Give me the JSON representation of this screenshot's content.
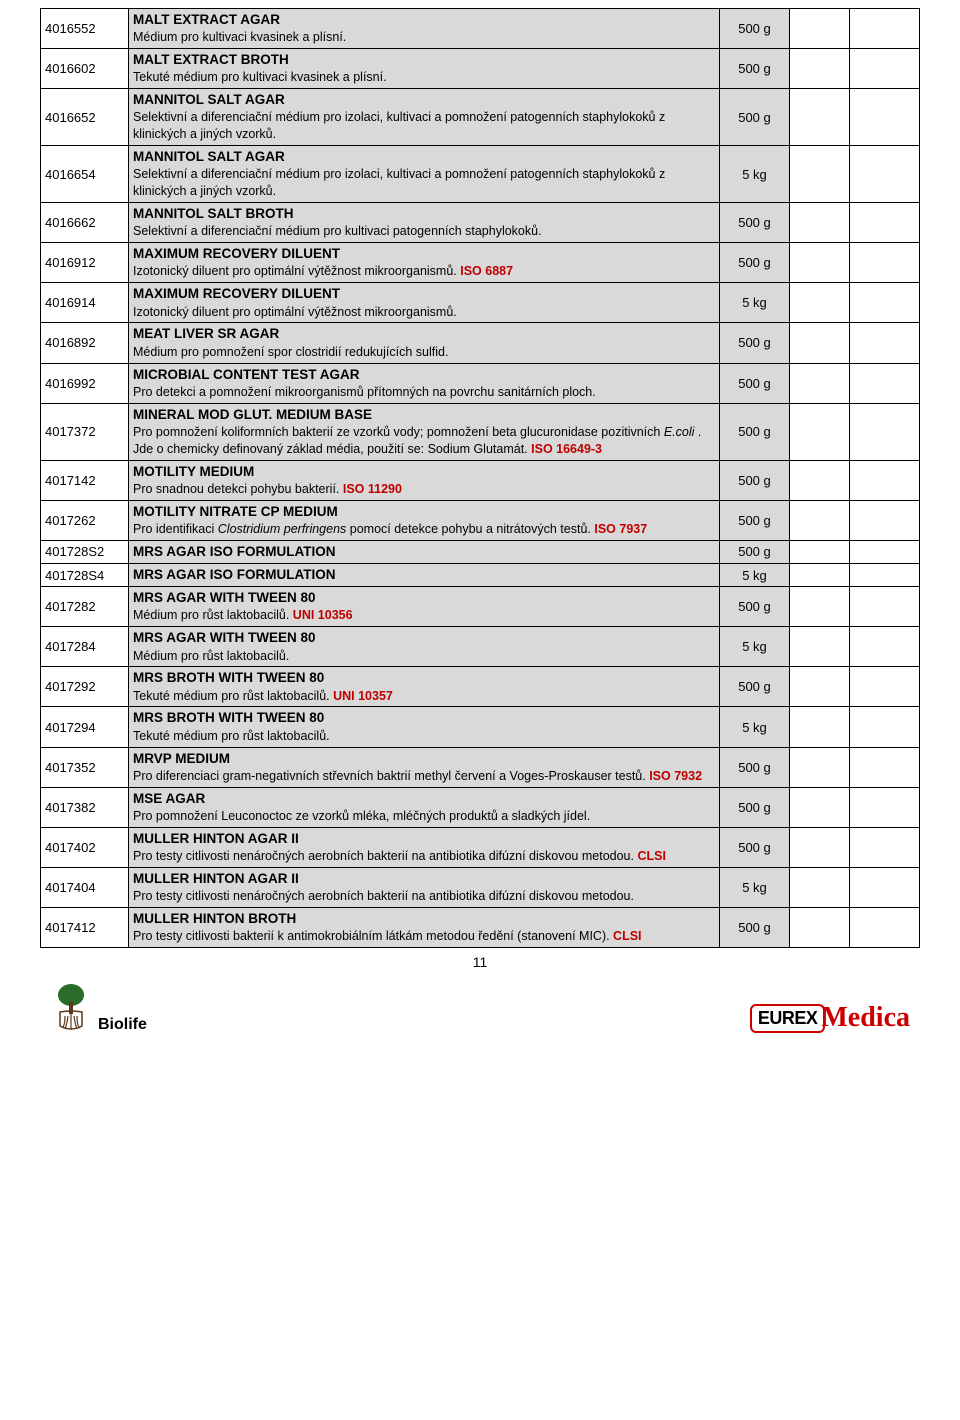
{
  "page_number": "11",
  "footer": {
    "biolife": "Biolife",
    "eurex": "EUREX",
    "medica": "Medica"
  },
  "rows": [
    {
      "code": "4016552",
      "title": "MALT EXTRACT AGAR",
      "desc": "Médium pro kultivaci kvasinek a plísní.",
      "qty": "500 g"
    },
    {
      "code": "4016602",
      "title": "MALT EXTRACT BROTH",
      "desc": "Tekuté médium pro kultivaci kvasinek a plísní.",
      "qty": "500 g"
    },
    {
      "code": "4016652",
      "title": "MANNITOL SALT AGAR",
      "desc": "Selektivní a diferenciační médium pro izolaci, kultivaci a pomnožení patogenních staphylokoků z klinických a jiných vzorků.",
      "qty": "500 g"
    },
    {
      "code": "4016654",
      "title": "MANNITOL SALT AGAR",
      "desc": "Selektivní a diferenciační médium pro izolaci, kultivaci a pomnožení patogenních staphylokoků z klinických a jiných vzorků.",
      "qty": "5 kg"
    },
    {
      "code": "4016662",
      "title": "MANNITOL SALT BROTH",
      "desc": "Selektivní a diferenciační médium pro kultivaci patogenních staphylokoků.",
      "qty": "500 g"
    },
    {
      "code": "4016912",
      "title": "MAXIMUM RECOVERY DILUENT",
      "desc": "Izotonický diluent pro optimální výtěžnost mikroorganismů.",
      "iso": " ISO 6887",
      "qty": "500 g"
    },
    {
      "code": "4016914",
      "title": "MAXIMUM RECOVERY DILUENT",
      "desc": "Izotonický diluent pro optimální výtěžnost mikroorganismů.",
      "qty": "5 kg"
    },
    {
      "code": "4016892",
      "title": "MEAT LIVER SR AGAR",
      "desc": "Médium pro pomnožení spor clostridií redukujících sulfid.",
      "qty": "500 g"
    },
    {
      "code": "4016992",
      "title": "MICROBIAL CONTENT TEST AGAR",
      "desc": "Pro detekci a pomnožení mikroorganismů přítomných na povrchu sanitárních ploch.",
      "qty": "500 g"
    },
    {
      "code": "4017372",
      "title": "MINERAL MOD GLUT. MEDIUM BASE",
      "desc_html": "Pro pomnožení koliformních bakterií ze vzorků vody; pomnožení beta glucuronidase pozitivních <span class='it'>E.coli</span> . Jde o chemicky definovaný základ média, použití se: Sodium Glutamát.",
      "iso": "  ISO 16649-3",
      "qty": "500 g"
    },
    {
      "code": "4017142",
      "title": "MOTILITY MEDIUM",
      "desc": "Pro snadnou detekci pohybu bakterií.",
      "iso": "  ISO 11290",
      "qty": "500 g"
    },
    {
      "code": "4017262",
      "title": "MOTILITY NITRATE CP MEDIUM",
      "desc_html": "Pro identifikaci <span class='it'>Clostridium perfringens</span> pomocí detekce pohybu a nitrátových testů.",
      "iso": "   ISO 7937",
      "qty": "500 g"
    },
    {
      "code": "401728S2",
      "title": "MRS AGAR ISO FORMULATION",
      "title_only": true,
      "qty": "500 g"
    },
    {
      "code": "401728S4",
      "title": "MRS AGAR ISO FORMULATION",
      "title_only": true,
      "qty": "5 kg"
    },
    {
      "code": "4017282",
      "title": "MRS AGAR WITH TWEEN 80",
      "desc": "Médium pro růst laktobacilů.",
      "iso": "  UNI 10356",
      "qty": "500 g"
    },
    {
      "code": "4017284",
      "title": "MRS AGAR WITH TWEEN 80",
      "desc": "Médium pro růst laktobacilů.",
      "qty": "5 kg"
    },
    {
      "code": "4017292",
      "title": "MRS BROTH WITH TWEEN 80",
      "desc": "Tekuté médium pro růst laktobacilů.",
      "iso": "  UNI 10357",
      "qty": "500 g"
    },
    {
      "code": "4017294",
      "title": "MRS BROTH WITH TWEEN 80",
      "desc": "Tekuté médium pro růst laktobacilů.",
      "qty": "5 kg"
    },
    {
      "code": "4017352",
      "title": "MRVP MEDIUM",
      "desc": "Pro diferenciaci gram-negativních střevních baktrií methyl červení a Voges-Proskauser testů.",
      "iso": "  ISO 7932",
      "qty": "500 g"
    },
    {
      "code": "4017382",
      "title": "MSE AGAR",
      "desc": "Pro pomnožení Leuconoctoc ze vzorků mléka, mléčných produktů a sladkých jídel.",
      "qty": "500 g"
    },
    {
      "code": "4017402",
      "title": "MULLER HINTON AGAR II",
      "desc": "Pro testy citlivosti nenáročných aerobních bakterií na antibiotika difúzní diskovou metodou.",
      "iso": " CLSI",
      "qty": "500 g"
    },
    {
      "code": "4017404",
      "title": "MULLER HINTON AGAR II",
      "desc": "Pro testy citlivosti nenáročných aerobních bakterií na antibiotika difúzní diskovou metodou.",
      "qty": "5 kg"
    },
    {
      "code": "4017412",
      "title": "MULLER HINTON BROTH",
      "desc": "Pro testy citlivosti bakterií k antimokrobiálním látkám metodou ředění (stanovení MIC).",
      "iso": "  CLSI",
      "qty": "500 g"
    }
  ]
}
